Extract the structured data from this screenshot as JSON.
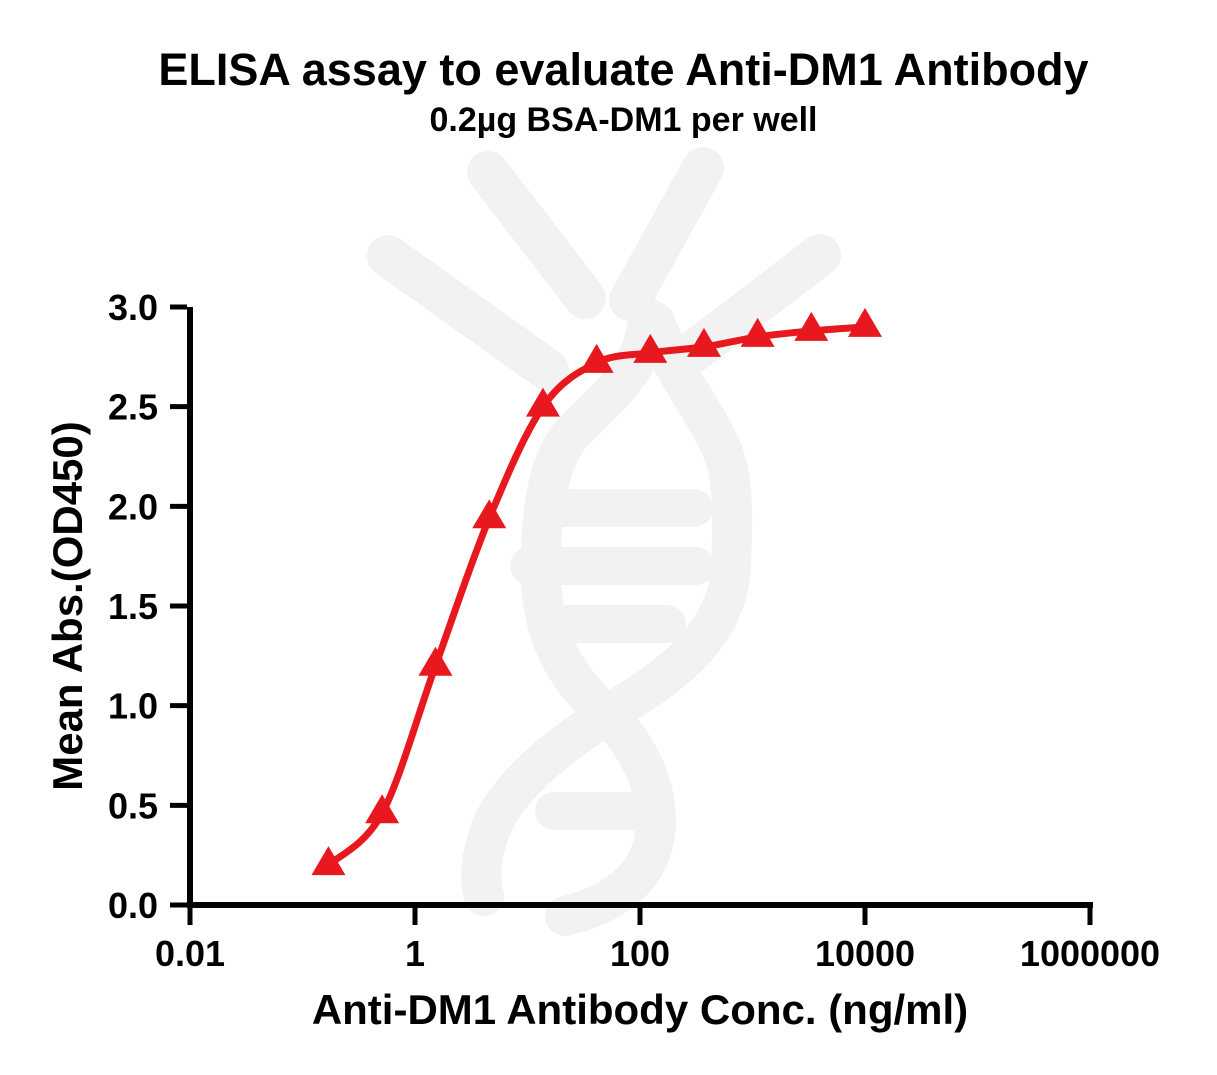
{
  "chart_data": {
    "type": "line",
    "title": "ELISA assay to evaluate Anti-DM1 Antibody",
    "subtitle": "0.2µg BSA-DM1 per well",
    "xlabel": "Anti-DM1 Antibody Conc. (ng/ml)",
    "ylabel": "Mean Abs.(OD450)",
    "x_scale": "log10",
    "xlim": [
      0.01,
      1000000
    ],
    "ylim": [
      0,
      3
    ],
    "x_ticks": [
      0.01,
      1,
      100,
      10000,
      1000000
    ],
    "x_tick_labels": [
      "0.01",
      "1",
      "100",
      "10000",
      "1000000"
    ],
    "y_ticks": [
      0,
      0.5,
      1,
      1.5,
      2,
      2.5,
      3
    ],
    "y_tick_labels": [
      "0.0",
      "0.5",
      "1.0",
      "1.5",
      "2.0",
      "2.5",
      "3.0"
    ],
    "grid": false,
    "legend": false,
    "series": [
      {
        "name": "Anti-DM1 Antibody",
        "marker": "triangle-up",
        "color": "#e8191e",
        "x": [
          0.17,
          0.51,
          1.52,
          4.57,
          13.72,
          41.15,
          123.46,
          370.37,
          1111.11,
          3333.33,
          10000
        ],
        "y": [
          0.2,
          0.46,
          1.2,
          1.94,
          2.5,
          2.72,
          2.77,
          2.8,
          2.85,
          2.88,
          2.9
        ]
      }
    ]
  },
  "colors": {
    "curve": "#e8191e",
    "axis": "#000000",
    "watermark": "#f2f2f2",
    "background": "#ffffff"
  }
}
